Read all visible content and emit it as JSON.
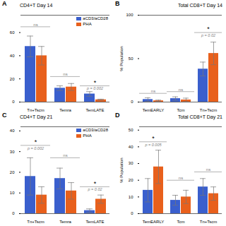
{
  "chart_data": [
    {
      "type": "bar",
      "title": "CD4+T Day 14",
      "annotations": [
        "A"
      ],
      "categories": [
        "Tn+Tscm",
        "Temra",
        "TemLATE"
      ],
      "series": [
        {
          "name": "aCD3/aCD28",
          "color": "#3a5fcd",
          "values": [
            48,
            12,
            7
          ],
          "errors": [
            9,
            2,
            2
          ]
        },
        {
          "name": "PHA",
          "color": "#e8601c",
          "values": [
            40,
            13,
            2
          ],
          "errors": [
            8,
            3,
            0.5
          ]
        }
      ],
      "ylim": [
        0,
        75
      ],
      "yticks": [
        0,
        20,
        40,
        60
      ],
      "legend": "upper right",
      "significance": [
        {
          "y": 65,
          "label": "ns"
        },
        {
          "y": 22,
          "label": "ns"
        },
        {
          "y": 14,
          "label": "*",
          "p_value": "p = 0.002"
        }
      ]
    },
    {
      "type": "bar",
      "title": "Total CD8+T Day 14",
      "annotations": [
        "B"
      ],
      "categories": [
        "TemEARLY",
        "Tcm",
        "Tn+Tscm"
      ],
      "series": [
        {
          "name": "aCD3/aCD28",
          "color": "#3a5fcd",
          "values": [
            3,
            4,
            38
          ],
          "errors": [
            2,
            2,
            8
          ]
        },
        {
          "name": "PHA",
          "color": "#e8601c",
          "values": [
            1.5,
            2.5,
            56
          ],
          "errors": [
            0.8,
            2,
            13
          ]
        }
      ],
      "ylim": [
        0,
        100
      ],
      "yticks": [
        0,
        50,
        100
      ],
      "ylabel": "% Population",
      "significance": [
        {
          "y": 10,
          "label": "ns"
        },
        {
          "y": 12,
          "label": "ns"
        },
        {
          "y": 80,
          "label": "*",
          "p_value": "p = 0.02"
        }
      ]
    },
    {
      "type": "bar",
      "title": "CD4+T Day 21",
      "annotations": [
        "C"
      ],
      "categories": [
        "Tn+Tscm",
        "Temra",
        "TemLATE"
      ],
      "series": [
        {
          "name": "aCD3/aCD28",
          "color": "#3a5fcd",
          "values": [
            18,
            17,
            1.5
          ],
          "errors": [
            9,
            5,
            0.8
          ]
        },
        {
          "name": "PHA",
          "color": "#e8601c",
          "values": [
            9,
            11,
            7
          ],
          "errors": [
            4,
            4,
            2
          ]
        }
      ],
      "ylim": [
        0,
        42
      ],
      "yticks": [
        0,
        10,
        20,
        30,
        40
      ],
      "legend": "upper right",
      "significance": [
        {
          "y": 33,
          "label": "*",
          "p_value": "p = 0.002"
        },
        {
          "y": 27,
          "label": "ns"
        },
        {
          "y": 13,
          "label": "*",
          "p_value": "p = 0.02"
        }
      ]
    },
    {
      "type": "bar",
      "title": "Total CD8+T Day 21",
      "annotations": [
        "D"
      ],
      "categories": [
        "TemEARLY",
        "Tcm",
        "Tn+Tscm"
      ],
      "series": [
        {
          "name": "aCD3/aCD28",
          "color": "#3a5fcd",
          "values": [
            14,
            8,
            16
          ],
          "errors": [
            7,
            3,
            5
          ]
        },
        {
          "name": "PHA",
          "color": "#e8601c",
          "values": [
            28,
            10,
            12
          ],
          "errors": [
            10,
            4,
            4
          ]
        }
      ],
      "ylim": [
        0,
        52
      ],
      "yticks": [
        0,
        10,
        20,
        30,
        40,
        50
      ],
      "ylabel": "% Population",
      "significance": [
        {
          "y": 43,
          "label": "*",
          "p_value": "p = 0.005"
        },
        {
          "y": 20,
          "label": "ns"
        },
        {
          "y": 25,
          "label": "ns"
        }
      ]
    }
  ]
}
